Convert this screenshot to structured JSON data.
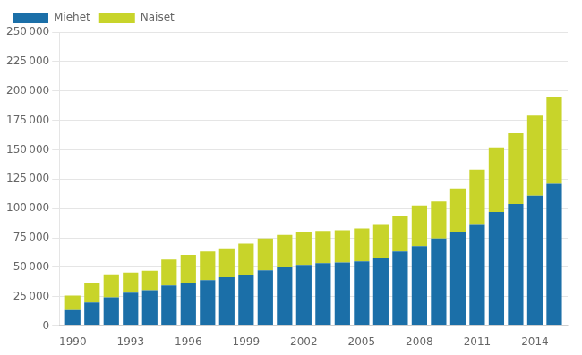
{
  "chart_data": {
    "type": "bar",
    "stacked": true,
    "x": [
      1990,
      1991,
      1992,
      1993,
      1994,
      1995,
      1996,
      1997,
      1998,
      1999,
      2000,
      2001,
      2002,
      2003,
      2004,
      2005,
      2006,
      2007,
      2008,
      2009,
      2010,
      2011,
      2012,
      2013,
      2014,
      2015
    ],
    "series": [
      {
        "name": "Miehet",
        "color": "#1B6FA8",
        "values": [
          13500,
          20000,
          24500,
          28500,
          30500,
          34500,
          37000,
          39000,
          41500,
          43500,
          47500,
          50000,
          52000,
          53500,
          54000,
          55000,
          58000,
          63500,
          68000,
          74500,
          80000,
          86000,
          97000,
          104000,
          111000,
          121000
        ]
      },
      {
        "name": "Naiset",
        "color": "#C8D42A",
        "values": [
          12500,
          16500,
          19500,
          17000,
          16500,
          22000,
          23500,
          24500,
          24500,
          26500,
          27000,
          27500,
          27500,
          27500,
          27500,
          28000,
          28000,
          30500,
          34500,
          31500,
          37000,
          47000,
          55000,
          60000,
          68000,
          74000
        ]
      }
    ],
    "xlim": [
      1989.3,
      2015.7
    ],
    "xticks": [
      1990,
      1993,
      1996,
      1999,
      2002,
      2005,
      2008,
      2011,
      2014
    ],
    "ylim": [
      0,
      250000
    ],
    "yticks": [
      0,
      {
        "value": 25000,
        "label": "25 000"
      },
      {
        "value": 50000,
        "label": "50 000"
      },
      {
        "value": 75000,
        "label": "75 000"
      },
      {
        "value": 100000,
        "label": "100 000"
      },
      {
        "value": 125000,
        "label": "125 000"
      },
      {
        "value": 150000,
        "label": "150 000"
      },
      {
        "value": 175000,
        "label": "175 000"
      },
      {
        "value": 200000,
        "label": "200 000"
      },
      {
        "value": 225000,
        "label": "225 000"
      },
      {
        "value": 250000,
        "label": "250 000"
      }
    ],
    "grid": true,
    "legend": "upper left"
  }
}
